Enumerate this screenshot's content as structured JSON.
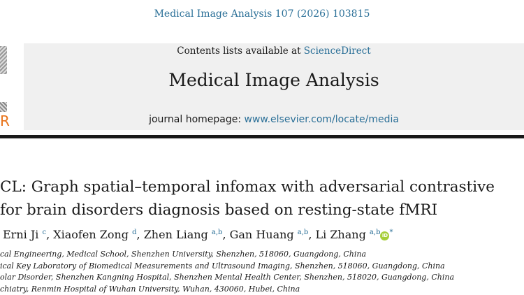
{
  "header": {
    "journal_ref": "Medical Image Analysis 107 (2026) 103815"
  },
  "banner": {
    "contents_prefix": "Contents lists available at ",
    "contents_link": "ScienceDirect",
    "journal_title": "Medical Image Analysis",
    "homepage_prefix": "journal homepage: ",
    "homepage_link": "www.elsevier.com/locate/media",
    "publisher_mark": "R"
  },
  "article": {
    "title_line1": "CL: Graph spatial–temporal infomax with adversarial contrastive",
    "title_line2": "for brain disorders diagnosis based on resting-state fMRI",
    "authors": [
      {
        "name": "Erni Ji",
        "sup": "c"
      },
      {
        "name": "Xiaofen Zong",
        "sup": "d"
      },
      {
        "name": "Zhen Liang",
        "sup": "a,b"
      },
      {
        "name": "Gan Huang",
        "sup": "a,b"
      },
      {
        "name": "Li Zhang",
        "sup": "a,b",
        "corresponding": "*"
      }
    ],
    "orcid_label": "iD",
    "affiliations": [
      "cal Engineering, Medical School, Shenzhen University, Shenzhen, 518060, Guangdong, China",
      "ical Key Laboratory of Biomedical Measurements and Ultrasound Imaging, Shenzhen, 518060, Guangdong, China",
      "olar Disorder, Shenzhen Kangning Hospital, Shenzhen Mental Health Center, Shenzhen, 518020, Guangdong, China",
      "chiatry, Renmin Hospital of Wuhan University, Wuhan, 430060, Hubei, China"
    ]
  },
  "colors": {
    "link": "#2a6f97",
    "banner_bg": "#f0f0f0",
    "orcid": "#a6ce39",
    "publisher_orange": "#e8731a"
  }
}
